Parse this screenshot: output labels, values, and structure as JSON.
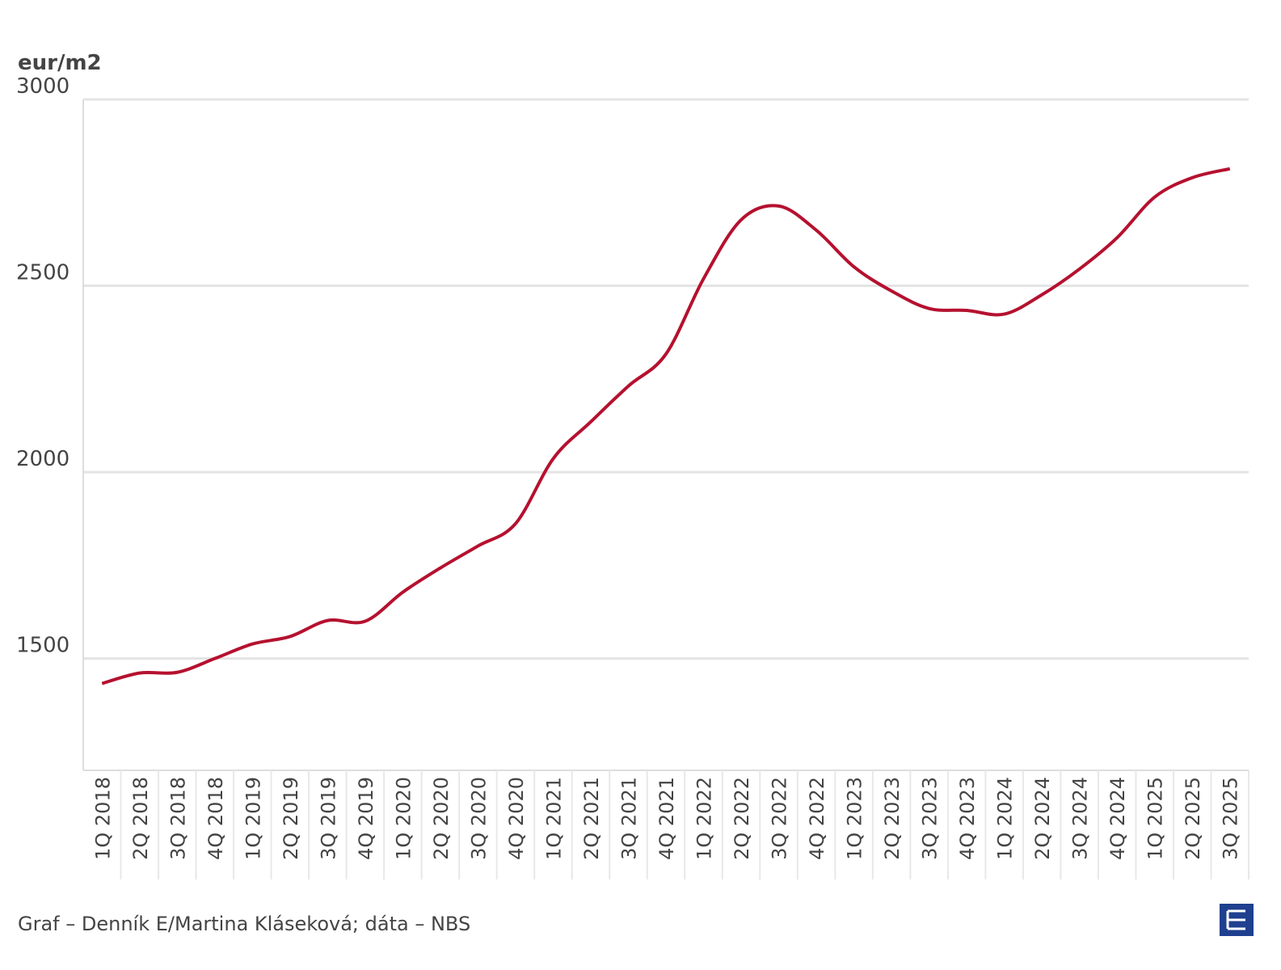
{
  "chart_data": {
    "type": "line",
    "y_label": "eur/m2",
    "source": "Graf – Denník E/Martina Kláseková; dáta – NBS",
    "categories": [
      "1Q 2018",
      "2Q 2018",
      "3Q 2018",
      "4Q 2018",
      "1Q 2019",
      "2Q 2019",
      "3Q 2019",
      "4Q 2019",
      "1Q 2020",
      "2Q 2020",
      "3Q 2020",
      "4Q 2020",
      "1Q 2021",
      "2Q 2021",
      "3Q 2021",
      "4Q 2021",
      "1Q 2022",
      "2Q 2022",
      "3Q 2022",
      "4Q 2022",
      "1Q 2023",
      "2Q 2023",
      "3Q 2023",
      "4Q 2023",
      "1Q 2024",
      "2Q 2024",
      "3Q 2024",
      "4Q 2024",
      "1Q 2025",
      "2Q 2025",
      "3Q 2025"
    ],
    "values": [
      1433,
      1461,
      1463,
      1500,
      1539,
      1559,
      1602,
      1600,
      1678,
      1743,
      1802,
      1862,
      2036,
      2135,
      2231,
      2317,
      2519,
      2677,
      2714,
      2649,
      2551,
      2486,
      2439,
      2434,
      2424,
      2476,
      2545,
      2629,
      2738,
      2790,
      2814
    ],
    "color": "#b5112f",
    "ylim": [
      1200,
      3000
    ],
    "yticks": [
      1500,
      2000,
      2500,
      3000
    ],
    "grid": true
  }
}
